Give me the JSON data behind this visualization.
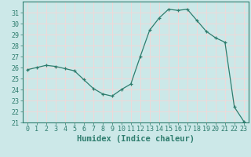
{
  "x": [
    0,
    1,
    2,
    3,
    4,
    5,
    6,
    7,
    8,
    9,
    10,
    11,
    12,
    13,
    14,
    15,
    16,
    17,
    18,
    19,
    20,
    21,
    22,
    23
  ],
  "y": [
    25.8,
    26.0,
    26.2,
    26.1,
    25.9,
    25.7,
    24.9,
    24.1,
    23.6,
    23.4,
    24.0,
    24.5,
    27.0,
    29.4,
    30.5,
    31.3,
    31.2,
    31.3,
    30.3,
    29.3,
    28.7,
    28.3,
    22.4,
    21.1
  ],
  "line_color": "#2e7d6e",
  "marker_color": "#2e7d6e",
  "bg_color": "#cce8e8",
  "grid_color": "#f0d8d8",
  "xlabel": "Humidex (Indice chaleur)",
  "ylim": [
    21,
    32
  ],
  "xlim": [
    -0.5,
    23.5
  ],
  "yticks": [
    21,
    22,
    23,
    24,
    25,
    26,
    27,
    28,
    29,
    30,
    31
  ],
  "xticks": [
    0,
    1,
    2,
    3,
    4,
    5,
    6,
    7,
    8,
    9,
    10,
    11,
    12,
    13,
    14,
    15,
    16,
    17,
    18,
    19,
    20,
    21,
    22,
    23
  ],
  "xlabel_fontsize": 7.5,
  "tick_fontsize": 6,
  "axis_color": "#2e7d6e"
}
